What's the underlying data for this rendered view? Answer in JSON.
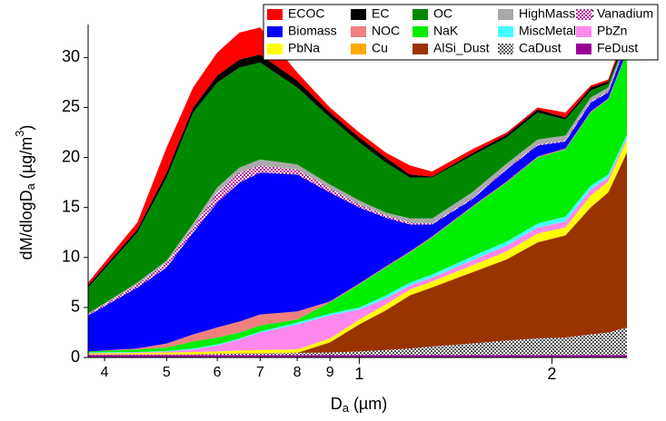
{
  "chart_data": {
    "type": "stacked-area",
    "xlabel": [
      "D",
      "a",
      " (µm)"
    ],
    "ylabel": [
      "dM/dlogD",
      "a",
      " (µg/m",
      "3",
      ")"
    ],
    "xlog": true,
    "xlim": [
      0.377,
      2.62
    ],
    "ylim": [
      0,
      33.3
    ],
    "xticks": [
      {
        "value": 0.4,
        "label": "4"
      },
      {
        "value": 0.5,
        "label": "5"
      },
      {
        "value": 0.6,
        "label": "6"
      },
      {
        "value": 0.7,
        "label": "7"
      },
      {
        "value": 0.8,
        "label": "8"
      },
      {
        "value": 0.9,
        "label": "9"
      },
      1,
      2
    ],
    "yticks": [
      0,
      5,
      10,
      15,
      20,
      25,
      30
    ],
    "legend": "top-right",
    "x": [
      0.377,
      0.45,
      0.5,
      0.55,
      0.6,
      0.65,
      0.7,
      0.8,
      0.9,
      1.0,
      1.1,
      1.2,
      1.3,
      1.5,
      1.7,
      1.9,
      2.1,
      2.3,
      2.45,
      2.62
    ],
    "series": [
      {
        "name": "ECOC",
        "color": "#ff0000",
        "values": [
          0.3,
          0.7,
          2.5,
          2.0,
          2.3,
          2.7,
          2.7,
          0.8,
          0.5,
          0.5,
          0.5,
          0.9,
          0.5,
          0.4,
          0.2,
          0.2,
          0.5,
          0.2,
          0.2,
          0.5
        ]
      },
      {
        "name": "EC",
        "color": "#000000",
        "values": [
          0.2,
          0.3,
          0.5,
          0.5,
          0.7,
          0.8,
          0.8,
          0.7,
          0.5,
          0.5,
          0.5,
          0.3,
          0.1,
          0.2,
          0.3,
          0.3,
          0.2,
          0.3,
          0.2,
          0.5
        ]
      },
      {
        "name": "OC",
        "color": "#008800",
        "values": [
          2.6,
          5.0,
          8.3,
          11.1,
          10.5,
          10.0,
          9.7,
          7.7,
          6.7,
          5.8,
          5.0,
          4.1,
          4.1,
          3.7,
          2.6,
          2.7,
          1.6,
          0.7,
          0.4,
          0.2
        ]
      },
      {
        "name": "HighMassOC",
        "color": "#aaaaaa",
        "values": [
          0.1,
          0.2,
          0.2,
          0.4,
          0.5,
          0.5,
          0.6,
          0.5,
          0.4,
          0.4,
          0.3,
          0.4,
          0.5,
          0.6,
          0.5,
          0.5,
          0.5,
          0.4,
          0.4,
          0.2
        ]
      },
      {
        "name": "Vanadium",
        "color": "#bb2299",
        "pattern": true,
        "values": [
          0.1,
          0.3,
          0.5,
          0.5,
          1.0,
          1.0,
          0.7,
          0.5,
          0.4,
          0.3,
          0.2,
          0.2,
          0.1,
          0.1,
          0.1,
          0.1,
          0.1,
          0.1,
          0.1,
          0.1
        ]
      },
      {
        "name": "Biomass",
        "color": "#0000ff",
        "values": [
          3.6,
          6.1,
          7.6,
          10.2,
          12.5,
          13.9,
          14.2,
          13.7,
          10.9,
          7.6,
          4.9,
          2.7,
          1.2,
          0.7,
          1.2,
          1.1,
          0.7,
          0.9,
          0.6,
          0.9
        ]
      },
      {
        "name": "NOC",
        "color": "#f08080",
        "values": [
          0,
          0.1,
          0.4,
          0.7,
          1.0,
          1.1,
          1.1,
          0.8,
          0.1,
          0.1,
          0.1,
          0.1,
          0.1,
          0.1,
          0.1,
          0.1,
          0.1,
          0.1,
          0.1,
          0.1
        ]
      },
      {
        "name": "NaK",
        "color": "#00ee00",
        "values": [
          0.1,
          0.25,
          0.35,
          0.7,
          0.7,
          0.6,
          0.6,
          0.3,
          1.1,
          2.3,
          2.8,
          3.0,
          3.7,
          4.9,
          5.9,
          6.6,
          6.7,
          7.3,
          7.5,
          8.2
        ]
      },
      {
        "name": "MiscMetals",
        "color": "#44ffff",
        "values": [
          0.05,
          0.05,
          0.05,
          0.1,
          0.1,
          0.1,
          0.1,
          0.2,
          0.2,
          0.2,
          0.3,
          0.3,
          0.3,
          0.4,
          0.4,
          0.4,
          0.5,
          0.4,
          0.3,
          0.3
        ]
      },
      {
        "name": "PbZn",
        "color": "#ff88ee",
        "values": [
          0.05,
          0.05,
          0.1,
          0.25,
          0.6,
          1.1,
          1.75,
          2.5,
          2.3,
          1.0,
          0.6,
          0.4,
          0.4,
          0.5,
          0.6,
          0.6,
          0.6,
          0.6,
          0.4,
          0.2
        ]
      },
      {
        "name": "PbNa",
        "color": "#ffff00",
        "values": [
          0.05,
          0.1,
          0.15,
          0.2,
          0.2,
          0.25,
          0.3,
          0.3,
          0.35,
          0.45,
          0.55,
          0.55,
          0.55,
          0.65,
          0.75,
          0.85,
          0.75,
          1.15,
          1.05,
          1.25
        ]
      },
      {
        "name": "Cu",
        "color": "#ffaa00",
        "values": [
          0.05,
          0.05,
          0.05,
          0.05,
          0.05,
          0.05,
          0.05,
          0.05,
          0.05,
          0.05,
          0.05,
          0.05,
          0.05,
          0.05,
          0.05,
          0.05,
          0.05,
          0.05,
          0.05,
          0.05
        ]
      },
      {
        "name": "AlSi_Dust",
        "color": "#993300",
        "values": [
          0,
          0,
          0,
          0,
          0,
          0,
          0,
          0,
          1.0,
          2.7,
          3.95,
          5.3,
          5.9,
          7.1,
          8.1,
          9.6,
          10.2,
          12.7,
          14.0,
          17.5
        ]
      },
      {
        "name": "CaDust",
        "color": "#555555",
        "pattern": true,
        "values": [
          0.05,
          0.05,
          0.05,
          0.05,
          0.1,
          0.15,
          0.15,
          0.2,
          0.25,
          0.35,
          0.5,
          0.65,
          0.85,
          1.15,
          1.45,
          1.65,
          1.75,
          2.05,
          2.25,
          2.75
        ]
      },
      {
        "name": "FeDust",
        "color": "#990099",
        "values": [
          0.25,
          0.25,
          0.25,
          0.25,
          0.25,
          0.25,
          0.25,
          0.25,
          0.25,
          0.25,
          0.25,
          0.25,
          0.25,
          0.25,
          0.25,
          0.25,
          0.25,
          0.25,
          0.25,
          0.25
        ]
      }
    ]
  }
}
